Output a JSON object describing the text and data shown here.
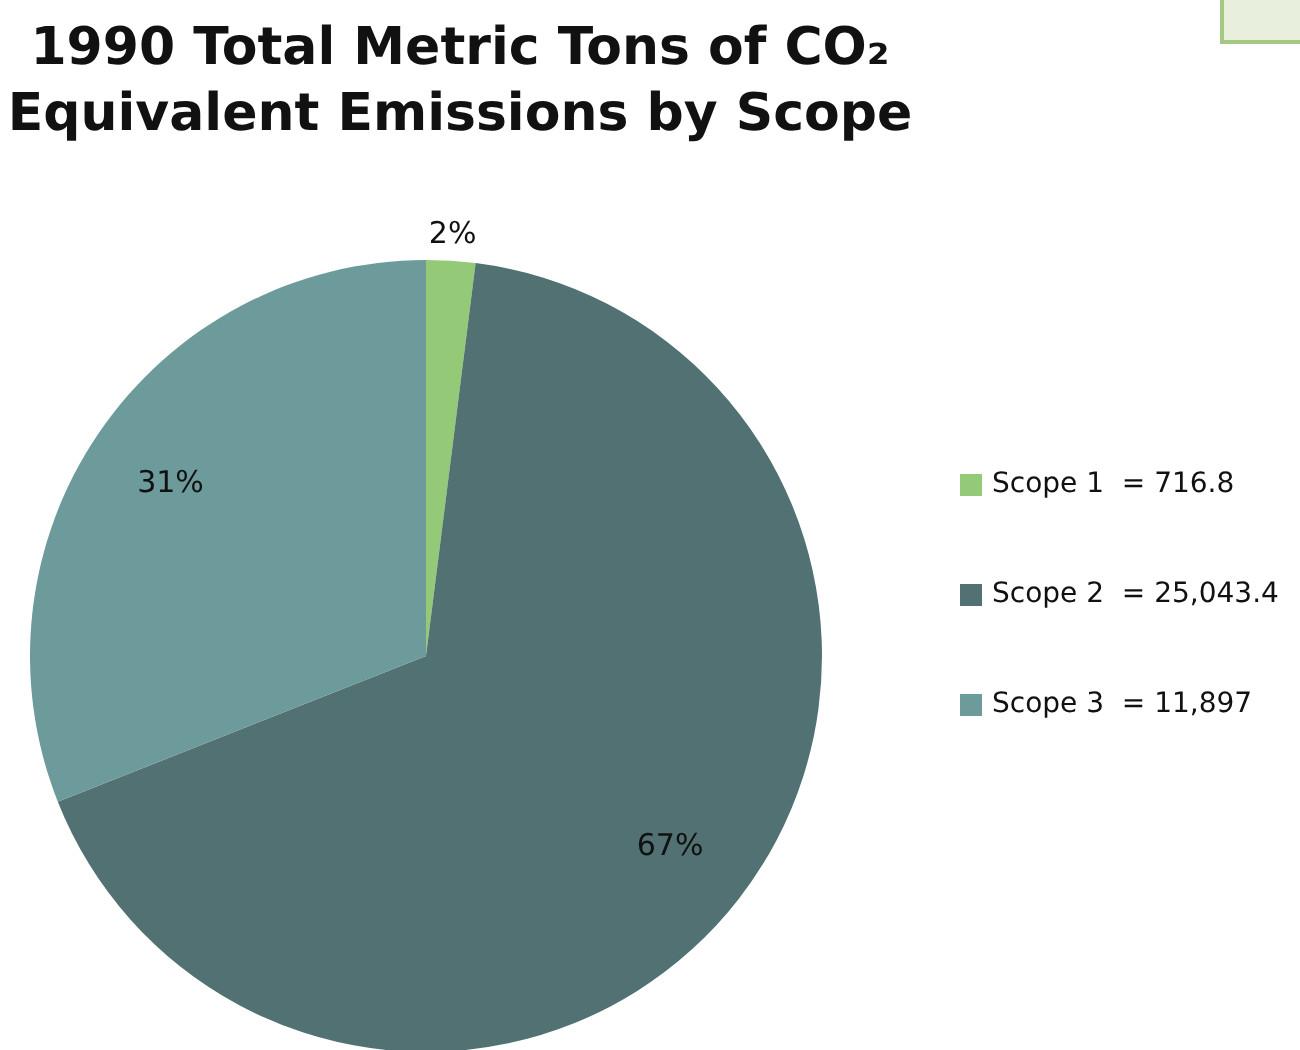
{
  "chart_data": {
    "type": "pie",
    "title": "1990 Total Metric Tons of CO₂ Equivalent Emissions by Scope",
    "categories": [
      "Scope 1  = 716.8",
      "Scope 2  = 25,043.4",
      "Scope 3  = 11,897"
    ],
    "values": [
      2,
      67,
      31
    ],
    "colors": [
      "#93c977",
      "#517173",
      "#6d9a9a"
    ],
    "value_labels": [
      "2%",
      "67%",
      "31%"
    ],
    "legend": "right"
  }
}
